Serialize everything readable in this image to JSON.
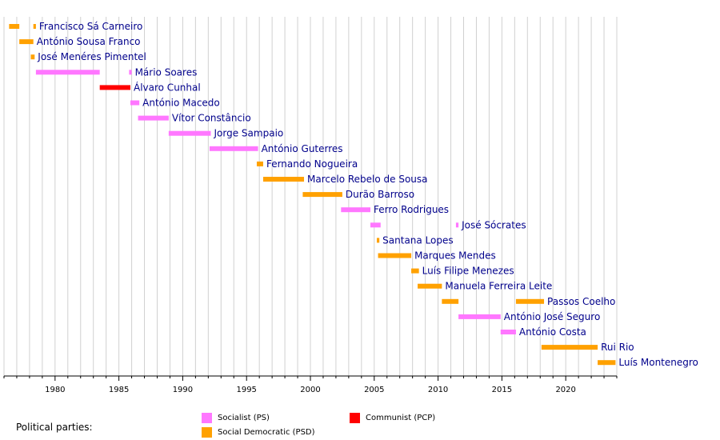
{
  "chart_data": {
    "type": "timeline",
    "x_range": [
      1976,
      2024
    ],
    "x_ticks": [
      1980,
      1985,
      1990,
      1995,
      2000,
      2005,
      2010,
      2015,
      2020
    ],
    "grid": true,
    "colors": {
      "PS": "#FF77FF",
      "PSD": "#FFA100",
      "PCP": "#FF0000"
    },
    "rows": [
      {
        "name": "Francisco Sá Carneiro",
        "spans": [
          {
            "start": 1976.4,
            "end": 1977.2,
            "party": "PSD"
          },
          {
            "start": 1978.3,
            "end": 1978.5,
            "party": "PSD"
          }
        ]
      },
      {
        "name": "António Sousa Franco",
        "spans": [
          {
            "start": 1977.2,
            "end": 1978.3,
            "party": "PSD"
          }
        ]
      },
      {
        "name": "José Menéres Pimentel",
        "spans": [
          {
            "start": 1978.1,
            "end": 1978.4,
            "party": "PSD"
          }
        ]
      },
      {
        "name": "Mário Soares",
        "spans": [
          {
            "start": 1978.5,
            "end": 1983.5,
            "party": "PS"
          },
          {
            "start": 1985.8,
            "end": 1986.0,
            "party": "PS"
          }
        ]
      },
      {
        "name": "Álvaro Cunhal",
        "spans": [
          {
            "start": 1983.5,
            "end": 1985.9,
            "party": "PCP"
          }
        ]
      },
      {
        "name": "António Macedo",
        "spans": [
          {
            "start": 1985.9,
            "end": 1986.6,
            "party": "PS"
          }
        ]
      },
      {
        "name": "Vítor Constâncio",
        "spans": [
          {
            "start": 1986.5,
            "end": 1988.9,
            "party": "PS"
          }
        ]
      },
      {
        "name": "Jorge Sampaio",
        "spans": [
          {
            "start": 1988.9,
            "end": 1992.2,
            "party": "PS"
          }
        ]
      },
      {
        "name": "António Guterres",
        "spans": [
          {
            "start": 1992.1,
            "end": 1995.9,
            "party": "PS"
          }
        ]
      },
      {
        "name": "Fernando Nogueira",
        "spans": [
          {
            "start": 1995.8,
            "end": 1996.3,
            "party": "PSD"
          }
        ]
      },
      {
        "name": "Marcelo Rebelo de Sousa",
        "spans": [
          {
            "start": 1996.3,
            "end": 1999.5,
            "party": "PSD"
          }
        ]
      },
      {
        "name": "Durão Barroso",
        "spans": [
          {
            "start": 1999.4,
            "end": 2002.5,
            "party": "PSD"
          }
        ]
      },
      {
        "name": "Ferro Rodrigues",
        "spans": [
          {
            "start": 2002.4,
            "end": 2004.7,
            "party": "PS"
          }
        ]
      },
      {
        "name": "José Sócrates",
        "spans": [
          {
            "start": 2004.7,
            "end": 2005.5,
            "party": "PS"
          },
          {
            "start": 2011.4,
            "end": 2011.6,
            "party": "PS"
          }
        ]
      },
      {
        "name": "Santana Lopes",
        "spans": [
          {
            "start": 2005.2,
            "end": 2005.4,
            "party": "PSD"
          }
        ]
      },
      {
        "name": "Marques Mendes",
        "spans": [
          {
            "start": 2005.3,
            "end": 2007.9,
            "party": "PSD"
          }
        ]
      },
      {
        "name": "Luís Filipe Menezes",
        "spans": [
          {
            "start": 2007.9,
            "end": 2008.5,
            "party": "PSD"
          }
        ]
      },
      {
        "name": "Manuela Ferreira Leite",
        "spans": [
          {
            "start": 2008.4,
            "end": 2010.3,
            "party": "PSD"
          }
        ]
      },
      {
        "name": "Passos Coelho",
        "spans": [
          {
            "start": 2010.3,
            "end": 2011.6,
            "party": "PSD"
          },
          {
            "start": 2016.1,
            "end": 2018.3,
            "party": "PSD"
          }
        ]
      },
      {
        "name": "António José Seguro",
        "spans": [
          {
            "start": 2011.6,
            "end": 2014.9,
            "party": "PS"
          }
        ]
      },
      {
        "name": "António Costa",
        "spans": [
          {
            "start": 2014.9,
            "end": 2016.1,
            "party": "PS"
          }
        ]
      },
      {
        "name": "Rui Rio",
        "spans": [
          {
            "start": 2018.1,
            "end": 2022.5,
            "party": "PSD"
          }
        ]
      },
      {
        "name": "Luís Montenegro",
        "spans": [
          {
            "start": 2022.5,
            "end": 2023.9,
            "party": "PSD"
          }
        ]
      }
    ]
  },
  "legend": {
    "title": "Political parties:",
    "items": [
      {
        "label": "Socialist (PS)",
        "color": "#FF77FF"
      },
      {
        "label": "Social Democratic (PSD)",
        "color": "#FFA100"
      },
      {
        "label": "Communist (PCP)",
        "color": "#FF0000"
      }
    ]
  }
}
